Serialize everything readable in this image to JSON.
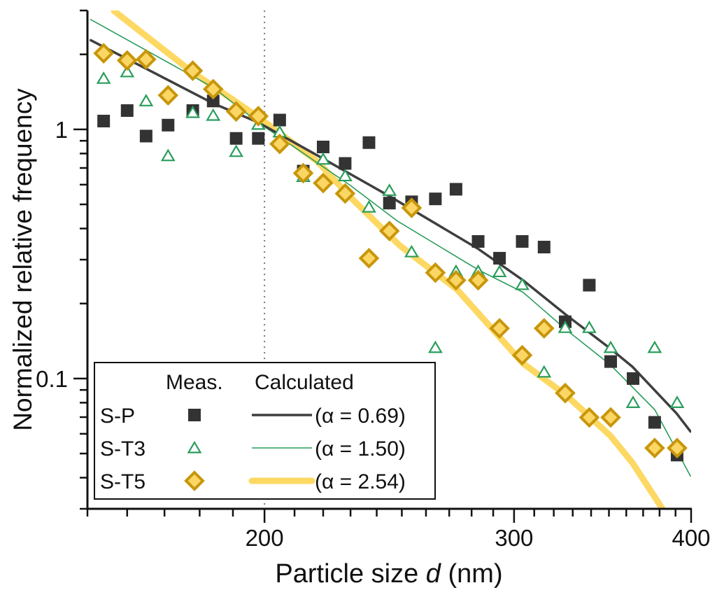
{
  "chart_data": {
    "type": "scatter",
    "xlabel_prefix": "Particle size ",
    "xlabel_var": "d",
    "xlabel_suffix": " (nm)",
    "ylabel": "Normalized relative frequency",
    "xscale": "log",
    "yscale": "log",
    "xlim": [
      150,
      400
    ],
    "ylim": [
      0.03,
      3
    ],
    "x_ticks": [
      {
        "value": 200,
        "label": "200"
      },
      {
        "value": 300,
        "label": "300"
      },
      {
        "value": 400,
        "label": "400"
      }
    ],
    "y_ticks": [
      {
        "value": 1,
        "label": "1"
      },
      {
        "value": 0.1,
        "label": "0.1"
      }
    ],
    "reference_line_x": 200,
    "grid": false,
    "legend": {
      "placement": "bottom-left",
      "header_measured": "Meas.",
      "header_calculated": "Calculated"
    },
    "series": [
      {
        "name": "S-P",
        "marker": "square",
        "color": "#333333",
        "fit_label": "(α = 0.69)",
        "fit_color": "#3f3f3f",
        "x": [
          154,
          160,
          165,
          171,
          178,
          184,
          191,
          198,
          205,
          213,
          220,
          228,
          237,
          245,
          254,
          264,
          273,
          283,
          293,
          304,
          315,
          326,
          339,
          351,
          364,
          377,
          391
        ],
        "y": [
          1.08,
          1.19,
          0.94,
          1.04,
          1.19,
          1.3,
          0.92,
          0.92,
          1.09,
          0.68,
          0.85,
          0.73,
          0.885,
          0.506,
          0.512,
          0.526,
          0.575,
          0.355,
          0.304,
          0.355,
          0.337,
          0.169,
          0.237,
          0.117,
          0.1,
          0.0667,
          0.0493
        ],
        "fit_x": [
          150.8,
          165.7,
          184.1,
          198.0,
          218.2,
          245.5,
          283.1,
          304.4,
          326.5,
          350.7,
          363.6,
          390.6,
          399.6
        ],
        "fit_y": [
          2.28,
          1.73,
          1.27,
          1.066,
          0.783,
          0.536,
          0.331,
          0.248,
          0.18,
          0.132,
          0.1115,
          0.0725,
          0.0613
        ]
      },
      {
        "name": "S-T3",
        "marker": "triangle",
        "color": "#2a9d5c",
        "fit_label": "(α = 1.50)",
        "fit_color": "#2a9d5c",
        "x": [
          154,
          160,
          165,
          171,
          178,
          184,
          191,
          198,
          205,
          213,
          220,
          228,
          237,
          245,
          254,
          264,
          273,
          283,
          293,
          304,
          315,
          326,
          339,
          351,
          364,
          377,
          391
        ],
        "y": [
          1.6,
          1.7,
          1.3,
          0.783,
          1.167,
          1.137,
          0.814,
          1.046,
          0.975,
          0.646,
          0.758,
          0.65,
          0.487,
          0.568,
          0.322,
          0.133,
          0.269,
          0.269,
          0.268,
          0.238,
          0.106,
          0.16,
          0.16,
          0.133,
          0.08,
          0.133,
          0.08
        ],
        "fit_x": [
          150.8,
          184.1,
          198.0,
          230.1,
          248.3,
          283.1,
          304.4,
          326.5,
          350.7,
          377.1,
          399.6
        ],
        "fit_y": [
          2.76,
          1.47,
          1.066,
          0.594,
          0.428,
          0.273,
          0.222,
          0.157,
          0.1137,
          0.0749,
          0.0406
        ]
      },
      {
        "name": "S-T5",
        "marker": "diamond",
        "color": "#c8960a",
        "fill": "#fbd665",
        "fit_label": "(α = 2.54)",
        "fit_color": "#fdd862",
        "x": [
          154,
          160,
          165,
          171,
          178,
          184,
          191,
          198,
          205,
          213,
          220,
          228,
          237,
          245,
          254,
          264,
          273,
          283,
          293,
          304,
          315,
          326,
          339,
          351,
          377,
          391
        ],
        "y": [
          2.02,
          1.89,
          1.91,
          1.37,
          1.72,
          1.45,
          1.18,
          1.13,
          0.874,
          0.667,
          0.609,
          0.553,
          0.304,
          0.391,
          0.484,
          0.266,
          0.248,
          0.248,
          0.159,
          0.124,
          0.159,
          0.0874,
          0.0698,
          0.0698,
          0.0526,
          0.0526
        ],
        "fit_x": [
          156.6,
          177.8,
          198.0,
          218.2,
          230.1,
          249.1,
          273.4,
          304.4,
          326.5,
          350.7,
          363.6,
          383.1
        ],
        "fit_y": [
          2.99,
          1.7,
          1.12,
          0.739,
          0.532,
          0.342,
          0.228,
          0.115,
          0.0857,
          0.059,
          0.0459,
          0.0291
        ]
      }
    ]
  }
}
